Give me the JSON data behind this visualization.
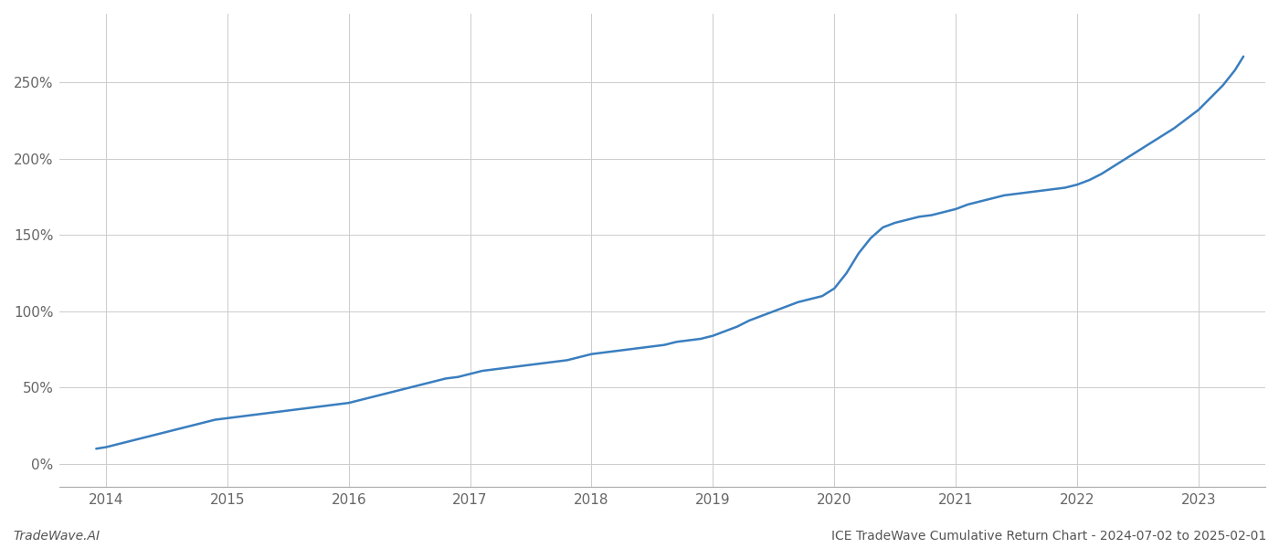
{
  "title": "",
  "footer_left": "TradeWave.AI",
  "footer_right": "ICE TradeWave Cumulative Return Chart - 2024-07-02 to 2025-02-01",
  "line_color": "#3a7ebf",
  "line_width": 1.8,
  "background_color": "#ffffff",
  "grid_color": "#cccccc",
  "x_years": [
    2014,
    2015,
    2016,
    2017,
    2018,
    2019,
    2020,
    2021,
    2022,
    2023
  ],
  "y_ticks": [
    0,
    50,
    100,
    150,
    200,
    250
  ],
  "y_tick_labels": [
    "0%",
    "50%",
    "100%",
    "150%",
    "200%",
    "250%"
  ],
  "xlim": [
    2013.62,
    2023.55
  ],
  "ylim": [
    -15,
    295
  ],
  "data_x": [
    2013.92,
    2014.0,
    2014.1,
    2014.2,
    2014.3,
    2014.4,
    2014.5,
    2014.6,
    2014.7,
    2014.8,
    2014.9,
    2015.0,
    2015.1,
    2015.2,
    2015.3,
    2015.4,
    2015.5,
    2015.6,
    2015.7,
    2015.8,
    2015.9,
    2016.0,
    2016.1,
    2016.2,
    2016.3,
    2016.4,
    2016.5,
    2016.6,
    2016.7,
    2016.8,
    2016.9,
    2017.0,
    2017.1,
    2017.2,
    2017.3,
    2017.4,
    2017.5,
    2017.6,
    2017.7,
    2017.8,
    2017.9,
    2018.0,
    2018.1,
    2018.2,
    2018.3,
    2018.4,
    2018.5,
    2018.6,
    2018.7,
    2018.8,
    2018.9,
    2019.0,
    2019.1,
    2019.2,
    2019.3,
    2019.4,
    2019.5,
    2019.6,
    2019.7,
    2019.8,
    2019.9,
    2020.0,
    2020.1,
    2020.2,
    2020.3,
    2020.4,
    2020.5,
    2020.6,
    2020.7,
    2020.8,
    2020.9,
    2021.0,
    2021.1,
    2021.2,
    2021.3,
    2021.4,
    2021.5,
    2021.6,
    2021.7,
    2021.8,
    2021.9,
    2022.0,
    2022.1,
    2022.2,
    2022.3,
    2022.4,
    2022.5,
    2022.6,
    2022.7,
    2022.8,
    2022.9,
    2023.0,
    2023.1,
    2023.2,
    2023.3,
    2023.37
  ],
  "data_y": [
    10,
    11,
    13,
    15,
    17,
    19,
    21,
    23,
    25,
    27,
    29,
    30,
    31,
    32,
    33,
    34,
    35,
    36,
    37,
    38,
    39,
    40,
    42,
    44,
    46,
    48,
    50,
    52,
    54,
    56,
    57,
    59,
    61,
    62,
    63,
    64,
    65,
    66,
    67,
    68,
    70,
    72,
    73,
    74,
    75,
    76,
    77,
    78,
    80,
    81,
    82,
    84,
    87,
    90,
    94,
    97,
    100,
    103,
    106,
    108,
    110,
    115,
    125,
    138,
    148,
    155,
    158,
    160,
    162,
    163,
    165,
    167,
    170,
    172,
    174,
    176,
    177,
    178,
    179,
    180,
    181,
    183,
    186,
    190,
    195,
    200,
    205,
    210,
    215,
    220,
    226,
    232,
    240,
    248,
    258,
    267
  ]
}
